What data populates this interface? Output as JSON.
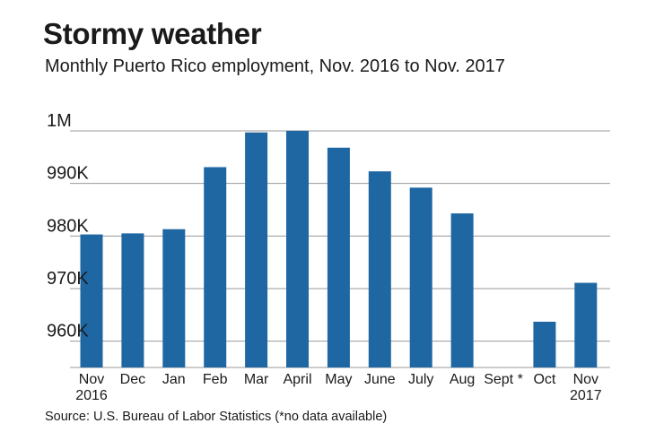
{
  "title": "Stormy weather",
  "subtitle": "Monthly Puerto Rico employment, Nov. 2016 to Nov. 2017",
  "source": "Source: U.S. Bureau of Labor Statistics (*no data available)",
  "colors": {
    "bar": "#1f67a3",
    "grid": "#9a9a9a",
    "text": "#1a1a1a"
  },
  "chart_data": {
    "type": "bar",
    "categories": [
      [
        "Nov",
        "2016"
      ],
      [
        "Dec"
      ],
      [
        "Jan"
      ],
      [
        "Feb"
      ],
      [
        "Mar"
      ],
      [
        "April"
      ],
      [
        "May"
      ],
      [
        "June"
      ],
      [
        "July"
      ],
      [
        "Aug"
      ],
      [
        "Sept *"
      ],
      [
        "Oct"
      ],
      [
        "Nov",
        "2017"
      ]
    ],
    "values": [
      980300,
      980500,
      981300,
      993100,
      999700,
      1000000,
      996800,
      992300,
      989200,
      984300,
      null,
      963700,
      971100
    ],
    "ylim": [
      955000,
      1000000
    ],
    "yticks": [
      {
        "value": 960000,
        "label": "960K"
      },
      {
        "value": 970000,
        "label": "970K"
      },
      {
        "value": 980000,
        "label": "980K"
      },
      {
        "value": 990000,
        "label": "990K"
      },
      {
        "value": 1000000,
        "label": "1M"
      }
    ],
    "grid": true,
    "xlabel": "",
    "ylabel": ""
  }
}
